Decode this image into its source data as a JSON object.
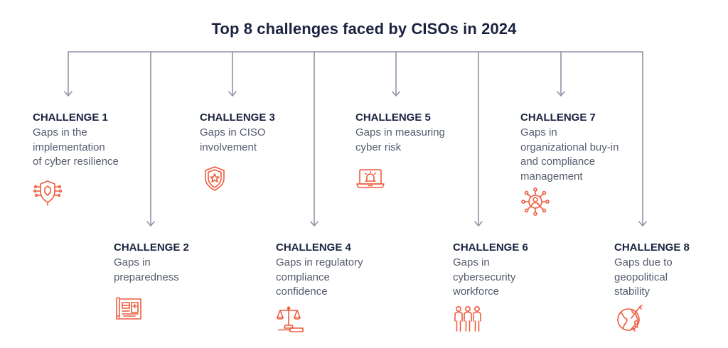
{
  "title": "Top 8 challenges faced by CISOs in 2024",
  "colors": {
    "line": "#8f93a6",
    "icon": "#ee5a3d",
    "heading": "#1b2340",
    "text": "#555c6e"
  },
  "challenges": [
    {
      "heading": "CHALLENGE 1",
      "lines": [
        "Gaps in the",
        "implementation",
        "of cyber resilience"
      ],
      "icon": "circuit-shield-icon"
    },
    {
      "heading": "CHALLENGE 2",
      "lines": [
        "Gaps in",
        "preparedness"
      ],
      "icon": "blueprint-icon"
    },
    {
      "heading": "CHALLENGE 3",
      "lines": [
        "Gaps in CISO",
        "involvement"
      ],
      "icon": "shield-star-icon"
    },
    {
      "heading": "CHALLENGE 4",
      "lines": [
        "Gaps in regulatory",
        "compliance",
        "confidence"
      ],
      "icon": "scales-icon"
    },
    {
      "heading": "CHALLENGE 5",
      "lines": [
        "Gaps in measuring",
        "cyber risk"
      ],
      "icon": "laptop-alert-icon"
    },
    {
      "heading": "CHALLENGE 6",
      "lines": [
        "Gaps in",
        "cybersecurity",
        "workforce"
      ],
      "icon": "team-icon"
    },
    {
      "heading": "CHALLENGE 7",
      "lines": [
        "Gaps in",
        "organizational buy-in",
        "and compliance",
        "management"
      ],
      "icon": "network-person-icon"
    },
    {
      "heading": "CHALLENGE 8",
      "lines": [
        "Gaps due to",
        "geopolitical",
        "stability"
      ],
      "icon": "globe-climber-icon"
    }
  ]
}
